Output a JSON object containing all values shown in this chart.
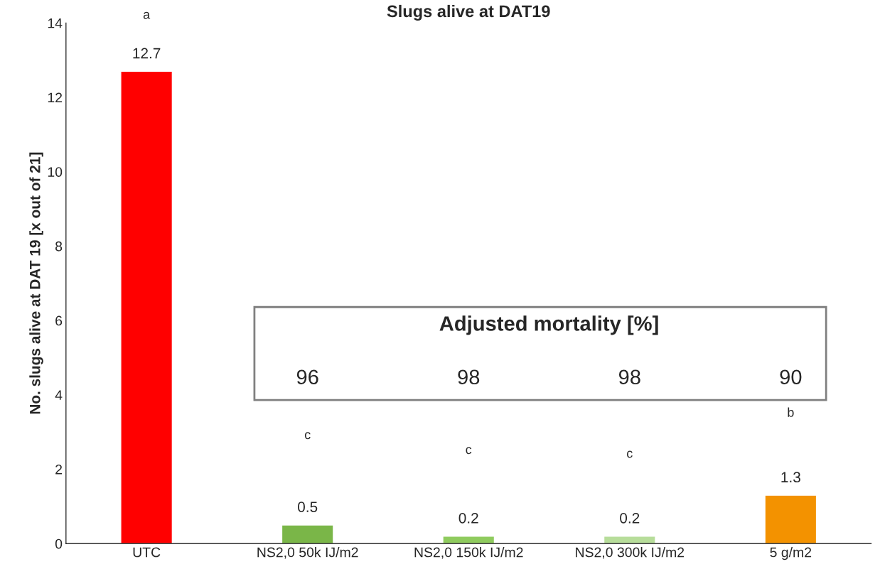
{
  "chart_data": {
    "type": "bar",
    "title": "Slugs alive at DAT19",
    "ylabel": "No. slugs alive at DAT 19 [x out of 21]",
    "categories": [
      "UTC",
      "NS2,0 50k IJ/m2",
      "NS2,0 150k IJ/m2",
      "NS2,0 300k IJ/m2",
      "5 g/m2"
    ],
    "values": [
      12.7,
      0.5,
      0.2,
      0.2,
      1.3
    ],
    "colors": [
      "#ff0000",
      "#7ab648",
      "#8fcb5e",
      "#b7dd9a",
      "#f39200"
    ],
    "ylim": [
      0,
      14
    ],
    "yticks": [
      0,
      2,
      4,
      6,
      8,
      10,
      12,
      14
    ],
    "grid": false,
    "data_labels": true,
    "annotations": [
      "a",
      "c",
      "c",
      "c",
      "b",
      "Adjusted mortality [%]",
      "96",
      "98",
      "98",
      "90"
    ]
  }
}
